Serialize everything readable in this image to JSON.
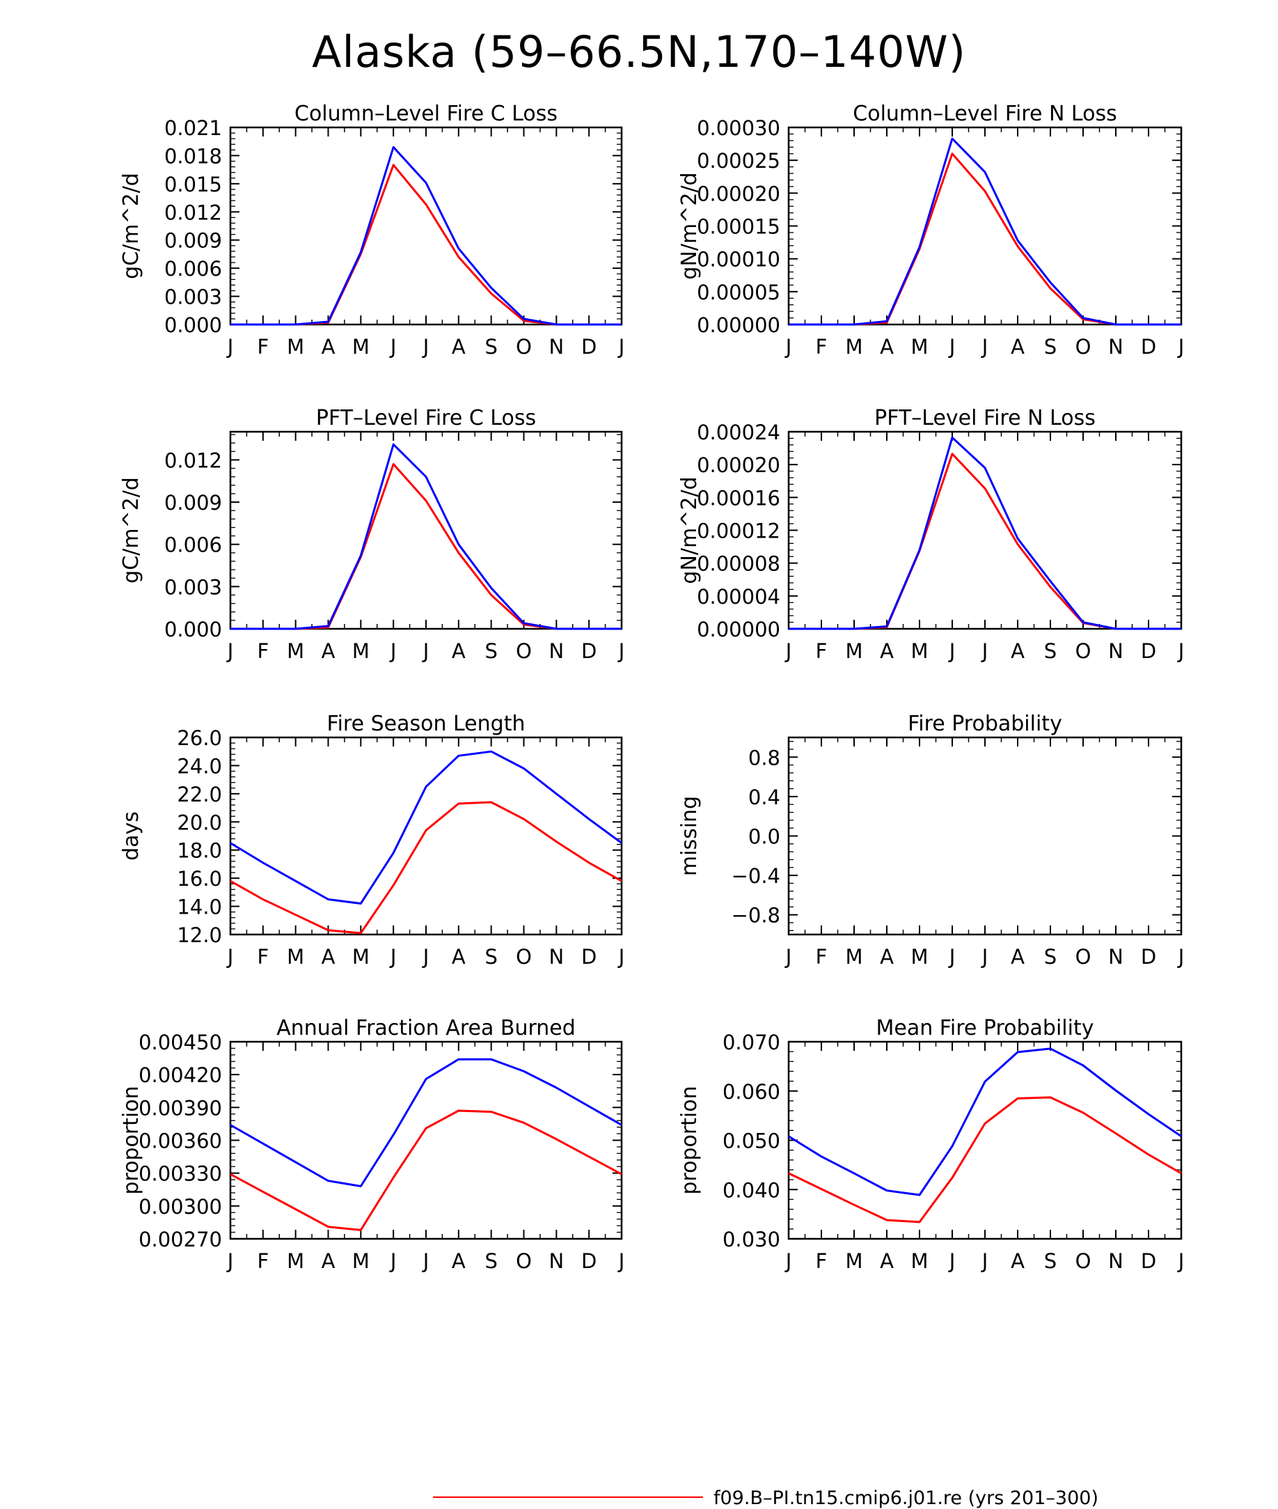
{
  "figure": {
    "title": "Alaska (59–66.5N,170–140W)",
    "legend_label": "f09.B–PI.tn15.cmip6.j01.re (yrs 201–300)",
    "legend_color": "#ff0000",
    "colors": {
      "red": "#ff0000",
      "blue": "#0000ff"
    }
  },
  "chart_data": [
    {
      "type": "line",
      "title": "Column–Level Fire C Loss",
      "ylabel": "gC/m^2/d",
      "categories": [
        "J",
        "F",
        "M",
        "A",
        "M",
        "J",
        "J",
        "A",
        "S",
        "O",
        "N",
        "D",
        "J"
      ],
      "ylim": [
        0,
        0.021
      ],
      "yticks": [
        0.0,
        0.003,
        0.006,
        0.009,
        0.012,
        0.015,
        0.018,
        0.021
      ],
      "yticklabels": [
        "0.000",
        "0.003",
        "0.006",
        "0.009",
        "0.012",
        "0.015",
        "0.018",
        "0.021"
      ],
      "series": [
        {
          "color": "#ff0000",
          "values": [
            0,
            0,
            0,
            0.0002,
            0.0075,
            0.017,
            0.0128,
            0.0072,
            0.0033,
            0.0004,
            0,
            0,
            0
          ]
        },
        {
          "color": "#0000ff",
          "values": [
            0,
            0,
            0,
            0.0003,
            0.0077,
            0.0189,
            0.0151,
            0.0081,
            0.0039,
            0.0006,
            0,
            0,
            0
          ]
        }
      ]
    },
    {
      "type": "line",
      "title": "Column–Level Fire N Loss",
      "ylabel": "gN/m^2/d",
      "categories": [
        "J",
        "F",
        "M",
        "A",
        "M",
        "J",
        "J",
        "A",
        "S",
        "O",
        "N",
        "D",
        "J"
      ],
      "ylim": [
        0,
        0.0003
      ],
      "yticks": [
        0,
        5e-05,
        0.0001,
        0.00015,
        0.0002,
        0.00025,
        0.0003
      ],
      "yticklabels": [
        "0.00000",
        "0.00005",
        "0.00010",
        "0.00015",
        "0.00020",
        "0.00025",
        "0.00030"
      ],
      "series": [
        {
          "color": "#ff0000",
          "values": [
            0,
            0,
            0,
            3e-06,
            0.000115,
            0.00026,
            0.000203,
            0.000119,
            5.5e-05,
            8e-06,
            0,
            0,
            0
          ]
        },
        {
          "color": "#0000ff",
          "values": [
            0,
            0,
            0,
            5e-06,
            0.000118,
            0.000283,
            0.000232,
            0.000128,
            6.4e-05,
            1e-05,
            0,
            0,
            0
          ]
        }
      ]
    },
    {
      "type": "line",
      "title": "PFT–Level Fire C Loss",
      "ylabel": "gC/m^2/d",
      "categories": [
        "J",
        "F",
        "M",
        "A",
        "M",
        "J",
        "J",
        "A",
        "S",
        "O",
        "N",
        "D",
        "J"
      ],
      "ylim": [
        0,
        0.014
      ],
      "yticks": [
        0.0,
        0.003,
        0.006,
        0.009,
        0.012
      ],
      "yticklabels": [
        "0.000",
        "0.003",
        "0.006",
        "0.009",
        "0.012"
      ],
      "series": [
        {
          "color": "#ff0000",
          "values": [
            0,
            0,
            0,
            0.0001,
            0.0051,
            0.0117,
            0.0091,
            0.0054,
            0.0024,
            0.0003,
            0,
            0,
            0
          ]
        },
        {
          "color": "#0000ff",
          "values": [
            0,
            0,
            0,
            0.0002,
            0.0052,
            0.0131,
            0.0108,
            0.006,
            0.0029,
            0.0004,
            0,
            0,
            0
          ]
        }
      ]
    },
    {
      "type": "line",
      "title": "PFT–Level Fire N Loss",
      "ylabel": "gN/m^2/d",
      "categories": [
        "J",
        "F",
        "M",
        "A",
        "M",
        "J",
        "J",
        "A",
        "S",
        "O",
        "N",
        "D",
        "J"
      ],
      "ylim": [
        0,
        0.00024
      ],
      "yticks": [
        0,
        4e-05,
        8e-05,
        0.00012,
        0.00016,
        0.0002,
        0.00024
      ],
      "yticklabels": [
        "0.00000",
        "0.00004",
        "0.00008",
        "0.00012",
        "0.00016",
        "0.00020",
        "0.00024"
      ],
      "series": [
        {
          "color": "#ff0000",
          "values": [
            0,
            0,
            0,
            2e-06,
            9.5e-05,
            0.000213,
            0.000171,
            0.000103,
            5.1e-05,
            7e-06,
            0,
            0,
            0
          ]
        },
        {
          "color": "#0000ff",
          "values": [
            0,
            0,
            0,
            3e-06,
            9.6e-05,
            0.000233,
            0.000196,
            0.00011,
            5.8e-05,
            8e-06,
            0,
            0,
            0
          ]
        }
      ]
    },
    {
      "type": "line",
      "title": "Fire Season Length",
      "ylabel": "days",
      "categories": [
        "J",
        "F",
        "M",
        "A",
        "M",
        "J",
        "J",
        "A",
        "S",
        "O",
        "N",
        "D",
        "J"
      ],
      "ylim": [
        12,
        26
      ],
      "yticks": [
        12,
        14,
        16,
        18,
        20,
        22,
        24,
        26
      ],
      "yticklabels": [
        "12.0",
        "14.0",
        "16.0",
        "18.0",
        "20.0",
        "22.0",
        "24.0",
        "26.0"
      ],
      "series": [
        {
          "color": "#ff0000",
          "values": [
            15.8,
            14.5,
            13.4,
            12.3,
            12.1,
            15.5,
            19.4,
            21.3,
            21.4,
            20.2,
            18.6,
            17.1,
            15.8
          ]
        },
        {
          "color": "#0000ff",
          "values": [
            18.5,
            17.1,
            15.8,
            14.5,
            14.2,
            17.8,
            22.5,
            24.7,
            25.0,
            23.8,
            22.0,
            20.2,
            18.5
          ]
        }
      ]
    },
    {
      "type": "line",
      "title": "Fire Probability",
      "ylabel": "missing",
      "categories": [
        "J",
        "F",
        "M",
        "A",
        "M",
        "J",
        "J",
        "A",
        "S",
        "O",
        "N",
        "D",
        "J"
      ],
      "ylim": [
        -1,
        1
      ],
      "yticks": [
        -0.8,
        -0.4,
        0.0,
        0.4,
        0.8
      ],
      "yticklabels": [
        "−0.8",
        "−0.4",
        "0.0",
        "0.4",
        "0.8"
      ],
      "series": []
    },
    {
      "type": "line",
      "title": "Annual Fraction Area Burned",
      "ylabel": "proportion",
      "categories": [
        "J",
        "F",
        "M",
        "A",
        "M",
        "J",
        "J",
        "A",
        "S",
        "O",
        "N",
        "D",
        "J"
      ],
      "ylim": [
        0.0027,
        0.0045
      ],
      "yticks": [
        0.0027,
        0.003,
        0.0033,
        0.0036,
        0.0039,
        0.0042,
        0.0045
      ],
      "yticklabels": [
        "0.00270",
        "0.00300",
        "0.00330",
        "0.00360",
        "0.00390",
        "0.00420",
        "0.00450"
      ],
      "series": [
        {
          "color": "#ff0000",
          "values": [
            0.00329,
            0.00313,
            0.00297,
            0.00281,
            0.00278,
            0.00326,
            0.00371,
            0.00387,
            0.00386,
            0.00376,
            0.00361,
            0.00345,
            0.00329
          ]
        },
        {
          "color": "#0000ff",
          "values": [
            0.00374,
            0.00357,
            0.0034,
            0.00323,
            0.00318,
            0.00365,
            0.00416,
            0.00434,
            0.00434,
            0.00423,
            0.00408,
            0.00391,
            0.00374
          ]
        }
      ]
    },
    {
      "type": "line",
      "title": "Mean Fire Probability",
      "ylabel": "proportion",
      "categories": [
        "J",
        "F",
        "M",
        "A",
        "M",
        "J",
        "J",
        "A",
        "S",
        "O",
        "N",
        "D",
        "J"
      ],
      "ylim": [
        0.03,
        0.07
      ],
      "yticks": [
        0.03,
        0.04,
        0.05,
        0.06,
        0.07
      ],
      "yticklabels": [
        "0.030",
        "0.040",
        "0.050",
        "0.060",
        "0.070"
      ],
      "series": [
        {
          "color": "#ff0000",
          "values": [
            0.0433,
            0.0401,
            0.0369,
            0.0338,
            0.0334,
            0.0424,
            0.0534,
            0.0585,
            0.0587,
            0.0556,
            0.0514,
            0.0471,
            0.0433
          ]
        },
        {
          "color": "#0000ff",
          "values": [
            0.0508,
            0.0467,
            0.0433,
            0.0398,
            0.0389,
            0.0488,
            0.0619,
            0.0679,
            0.0686,
            0.0652,
            0.0601,
            0.0553,
            0.0508
          ]
        }
      ]
    }
  ]
}
